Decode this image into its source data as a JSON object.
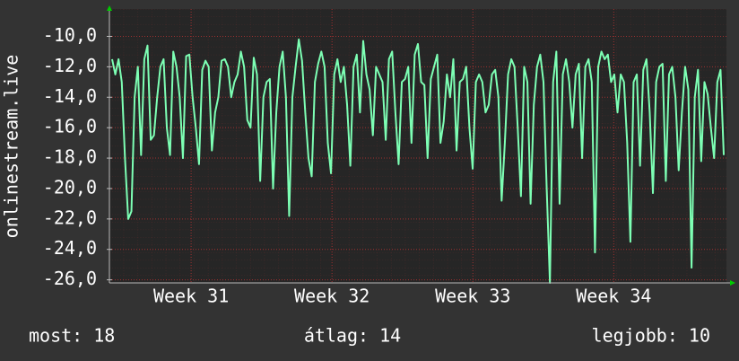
{
  "chart_data": {
    "type": "line",
    "y_label": "onlinestream.live",
    "xlim": [
      30.42,
      34.8
    ],
    "xticks": [
      {
        "value": 31,
        "label": "Week 31"
      },
      {
        "value": 32,
        "label": "Week 32"
      },
      {
        "value": 33,
        "label": "Week 33"
      },
      {
        "value": 34,
        "label": "Week 34"
      }
    ],
    "ylim": [
      -26.2,
      -8.2
    ],
    "yticks": [
      {
        "value": -10,
        "label": "-10,0"
      },
      {
        "value": -12,
        "label": "-12,0"
      },
      {
        "value": -14,
        "label": "-14,0"
      },
      {
        "value": -16,
        "label": "-16,0"
      },
      {
        "value": -18,
        "label": "-18,0"
      },
      {
        "value": -20,
        "label": "-20,0"
      },
      {
        "value": -22,
        "label": "-22,0"
      },
      {
        "value": -24,
        "label": "-24,0"
      },
      {
        "value": -26,
        "label": "-26,0"
      }
    ],
    "grid": true,
    "color": "#7dffb4",
    "values": [
      -11.5,
      -12.5,
      -11.5,
      -13,
      -18,
      -22,
      -21.5,
      -14,
      -12,
      -17.8,
      -11.5,
      -10.6,
      -16.8,
      -16.5,
      -14,
      -12,
      -11.5,
      -16,
      -17.8,
      -11,
      -12,
      -14,
      -18,
      -11.3,
      -11.2,
      -14,
      -16,
      -18.4,
      -12.2,
      -11.6,
      -12,
      -17.5,
      -15,
      -14,
      -11.6,
      -11.5,
      -12,
      -14,
      -13,
      -12.5,
      -11,
      -12,
      -15.5,
      -16,
      -11.4,
      -12.5,
      -19.5,
      -14,
      -13,
      -12.8,
      -20,
      -15,
      -12,
      -11,
      -14,
      -21.8,
      -14,
      -12,
      -10.2,
      -11.6,
      -15,
      -18,
      -19.2,
      -13,
      -11.8,
      -11,
      -12,
      -17,
      -19,
      -12.5,
      -11.5,
      -13,
      -12,
      -14.5,
      -18.5,
      -12,
      -11.2,
      -15,
      -10.3,
      -12.5,
      -13.5,
      -16.5,
      -12,
      -12.5,
      -13,
      -16.8,
      -11.5,
      -11,
      -15,
      -18.4,
      -13,
      -12.8,
      -12,
      -17,
      -11.2,
      -10.5,
      -13,
      -13.2,
      -18,
      -12.8,
      -12,
      -11.2,
      -17,
      -15.6,
      -12.5,
      -14,
      -11.5,
      -17.5,
      -13,
      -12.8,
      -12,
      -16,
      -18.7,
      -13,
      -12.5,
      -13,
      -15,
      -14.5,
      -12.5,
      -12.2,
      -14,
      -20.8,
      -17,
      -12.5,
      -11.5,
      -12,
      -16,
      -20.5,
      -12,
      -13,
      -21,
      -14.5,
      -12,
      -11.2,
      -13,
      -20,
      -26.2,
      -13,
      -11,
      -21,
      -12.5,
      -11.5,
      -13,
      -16,
      -12.5,
      -11.8,
      -18,
      -12,
      -11.5,
      -13,
      -24.2,
      -12,
      -11,
      -11.5,
      -11.2,
      -13,
      -12.5,
      -15,
      -12.5,
      -13,
      -17,
      -23.5,
      -13,
      -12.5,
      -18.5,
      -12.2,
      -11.5,
      -15,
      -20.3,
      -13,
      -12,
      -11.8,
      -19.5,
      -12.5,
      -12,
      -14,
      -18.8,
      -15,
      -12,
      -13.5,
      -25.2,
      -14,
      -12.2,
      -18.2,
      -13,
      -13.8,
      -16,
      -18,
      -13,
      -12.2,
      -17.8
    ],
    "stats": [
      "most: 18",
      "átlag: 14",
      "legjobb: 10"
    ]
  }
}
